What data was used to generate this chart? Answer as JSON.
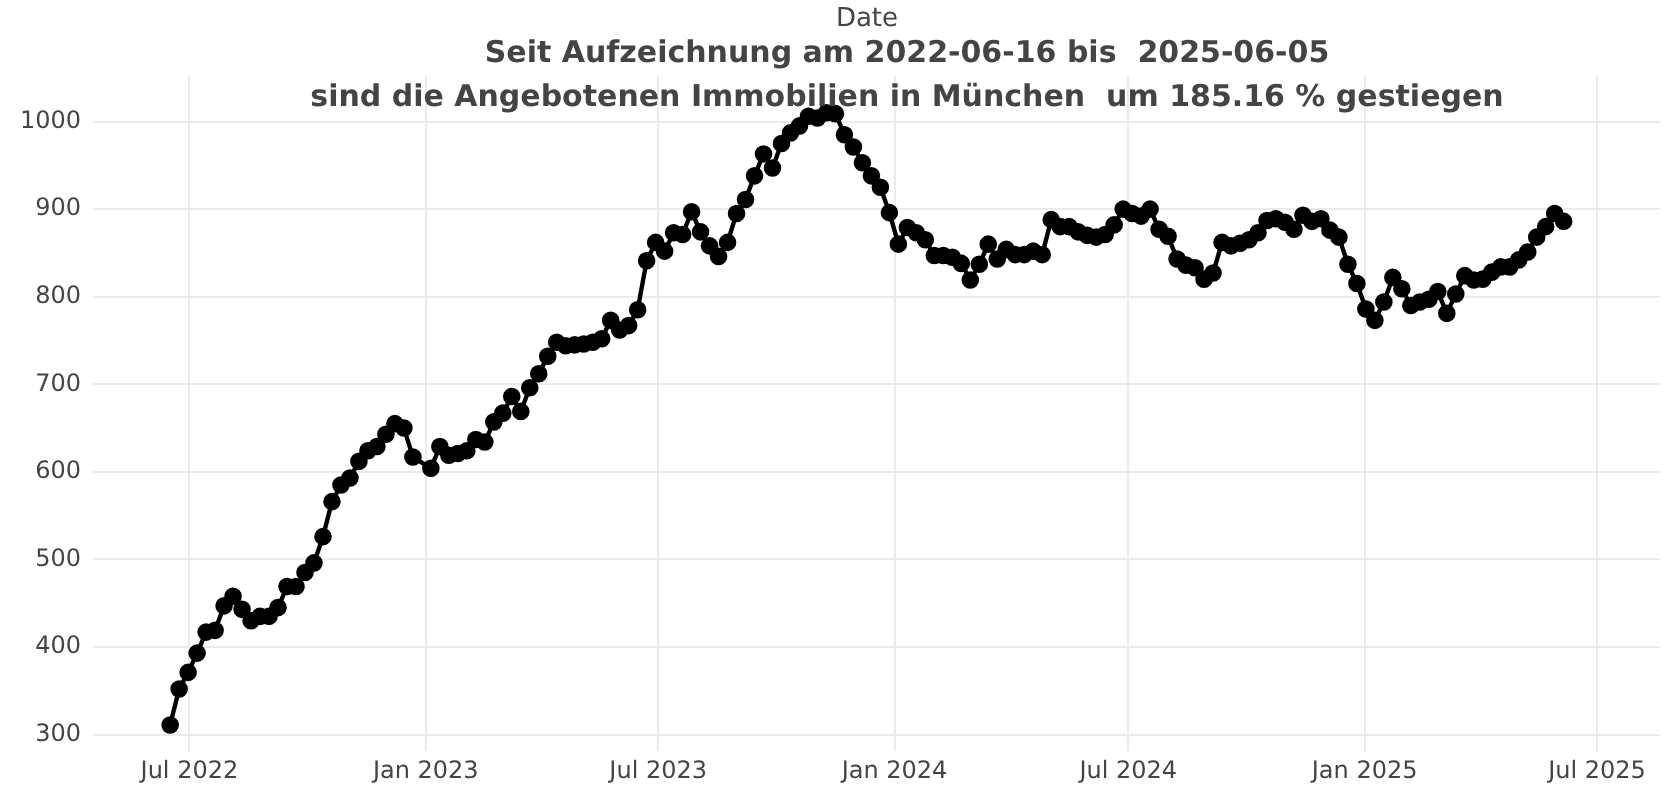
{
  "chart_data": {
    "type": "line",
    "title": "Seit Aufzeichnung am 2022-06-16 bis  2025-06-05\nsind die Angebotenen Immobilien in München  um 185.16 % gestiegen",
    "xlabel": "Date",
    "x": [
      "2022-06-16",
      "2022-06-23",
      "2022-06-30",
      "2022-07-07",
      "2022-07-14",
      "2022-07-21",
      "2022-07-28",
      "2022-08-04",
      "2022-08-11",
      "2022-08-18",
      "2022-08-25",
      "2022-09-01",
      "2022-09-08",
      "2022-09-15",
      "2022-09-22",
      "2022-09-29",
      "2022-10-06",
      "2022-10-13",
      "2022-10-20",
      "2022-10-27",
      "2022-11-03",
      "2022-11-10",
      "2022-11-17",
      "2022-11-24",
      "2022-12-01",
      "2022-12-08",
      "2022-12-15",
      "2022-12-22",
      "2023-01-05",
      "2023-01-12",
      "2023-01-19",
      "2023-01-26",
      "2023-02-02",
      "2023-02-09",
      "2023-02-16",
      "2023-02-23",
      "2023-03-02",
      "2023-03-09",
      "2023-03-16",
      "2023-03-23",
      "2023-03-30",
      "2023-04-06",
      "2023-04-13",
      "2023-04-20",
      "2023-04-27",
      "2023-05-04",
      "2023-05-11",
      "2023-05-18",
      "2023-05-25",
      "2023-06-01",
      "2023-06-08",
      "2023-06-15",
      "2023-06-22",
      "2023-06-29",
      "2023-07-06",
      "2023-07-13",
      "2023-07-20",
      "2023-07-27",
      "2023-08-03",
      "2023-08-10",
      "2023-08-17",
      "2023-08-24",
      "2023-08-31",
      "2023-09-07",
      "2023-09-14",
      "2023-09-21",
      "2023-09-28",
      "2023-10-05",
      "2023-10-12",
      "2023-10-19",
      "2023-10-26",
      "2023-11-02",
      "2023-11-09",
      "2023-11-16",
      "2023-11-23",
      "2023-11-30",
      "2023-12-07",
      "2023-12-14",
      "2023-12-21",
      "2023-12-28",
      "2024-01-04",
      "2024-01-11",
      "2024-01-18",
      "2024-01-25",
      "2024-02-01",
      "2024-02-08",
      "2024-02-15",
      "2024-02-22",
      "2024-02-29",
      "2024-03-07",
      "2024-03-14",
      "2024-03-21",
      "2024-03-28",
      "2024-04-04",
      "2024-04-11",
      "2024-04-18",
      "2024-04-25",
      "2024-05-02",
      "2024-05-09",
      "2024-05-16",
      "2024-05-23",
      "2024-05-30",
      "2024-06-06",
      "2024-06-13",
      "2024-06-20",
      "2024-06-27",
      "2024-07-04",
      "2024-07-11",
      "2024-07-18",
      "2024-07-25",
      "2024-08-01",
      "2024-08-08",
      "2024-08-15",
      "2024-08-22",
      "2024-08-29",
      "2024-09-05",
      "2024-09-12",
      "2024-09-19",
      "2024-09-26",
      "2024-10-03",
      "2024-10-10",
      "2024-10-17",
      "2024-10-24",
      "2024-10-31",
      "2024-11-07",
      "2024-11-14",
      "2024-11-21",
      "2024-11-28",
      "2024-12-05",
      "2024-12-12",
      "2024-12-19",
      "2024-12-26",
      "2025-01-02",
      "2025-01-09",
      "2025-01-16",
      "2025-01-23",
      "2025-01-30",
      "2025-02-06",
      "2025-02-13",
      "2025-02-20",
      "2025-02-27",
      "2025-03-06",
      "2025-03-13",
      "2025-03-20",
      "2025-03-27",
      "2025-04-03",
      "2025-04-10",
      "2025-04-17",
      "2025-04-24",
      "2025-05-01",
      "2025-05-08",
      "2025-05-15",
      "2025-05-22",
      "2025-05-29",
      "2025-06-05"
    ],
    "series": [
      {
        "color": "#000000",
        "values": [
          311,
          352,
          371,
          393,
          417,
          419,
          447,
          458,
          443,
          430,
          435,
          435,
          445,
          469,
          469,
          485,
          496,
          526,
          566,
          585,
          593,
          612,
          624,
          629,
          643,
          655,
          650,
          617,
          604,
          629,
          619,
          621,
          624,
          637,
          634,
          657,
          667,
          686,
          669,
          696,
          712,
          732,
          748,
          744,
          745,
          746,
          748,
          752,
          773,
          762,
          767,
          785,
          841,
          862,
          852,
          873,
          871,
          897,
          874,
          858,
          846,
          862,
          895,
          911,
          938,
          963,
          947,
          975,
          987,
          995,
          1006,
          1004,
          1010,
          1009,
          985,
          971,
          953,
          938,
          925,
          896,
          860,
          879,
          873,
          865,
          847,
          847,
          845,
          838,
          819,
          837,
          860,
          843,
          854,
          848,
          848,
          852,
          848,
          888,
          880,
          880,
          874,
          870,
          868,
          871,
          882,
          900,
          895,
          892,
          900,
          877,
          869,
          843,
          836,
          833,
          820,
          827,
          862,
          858,
          861,
          865,
          873,
          887,
          889,
          885,
          877,
          893,
          886,
          889,
          876,
          868,
          837,
          815,
          786,
          773,
          794,
          822,
          809,
          790,
          794,
          797,
          806,
          781,
          803,
          824,
          819,
          820,
          828,
          834,
          834,
          842,
          851,
          868,
          880,
          895,
          886
        ]
      }
    ],
    "xlim": [
      "2022-04-17",
      "2025-08-19"
    ],
    "xticks": [
      {
        "value": "2022-07-01",
        "label": "Jul 2022"
      },
      {
        "value": "2023-01-01",
        "label": "Jan 2023"
      },
      {
        "value": "2023-07-01",
        "label": "Jul 2023"
      },
      {
        "value": "2024-01-01",
        "label": "Jan 2024"
      },
      {
        "value": "2024-07-01",
        "label": "Jul 2024"
      },
      {
        "value": "2025-01-01",
        "label": "Jan 2025"
      },
      {
        "value": "2025-07-01",
        "label": "Jul 2025"
      }
    ],
    "ylim": [
      281,
      1052
    ],
    "yticks": [
      300,
      400,
      500,
      600,
      700,
      800,
      900,
      1000
    ],
    "grid": true,
    "legend": false,
    "marker": "circle",
    "line_style": "solid"
  }
}
